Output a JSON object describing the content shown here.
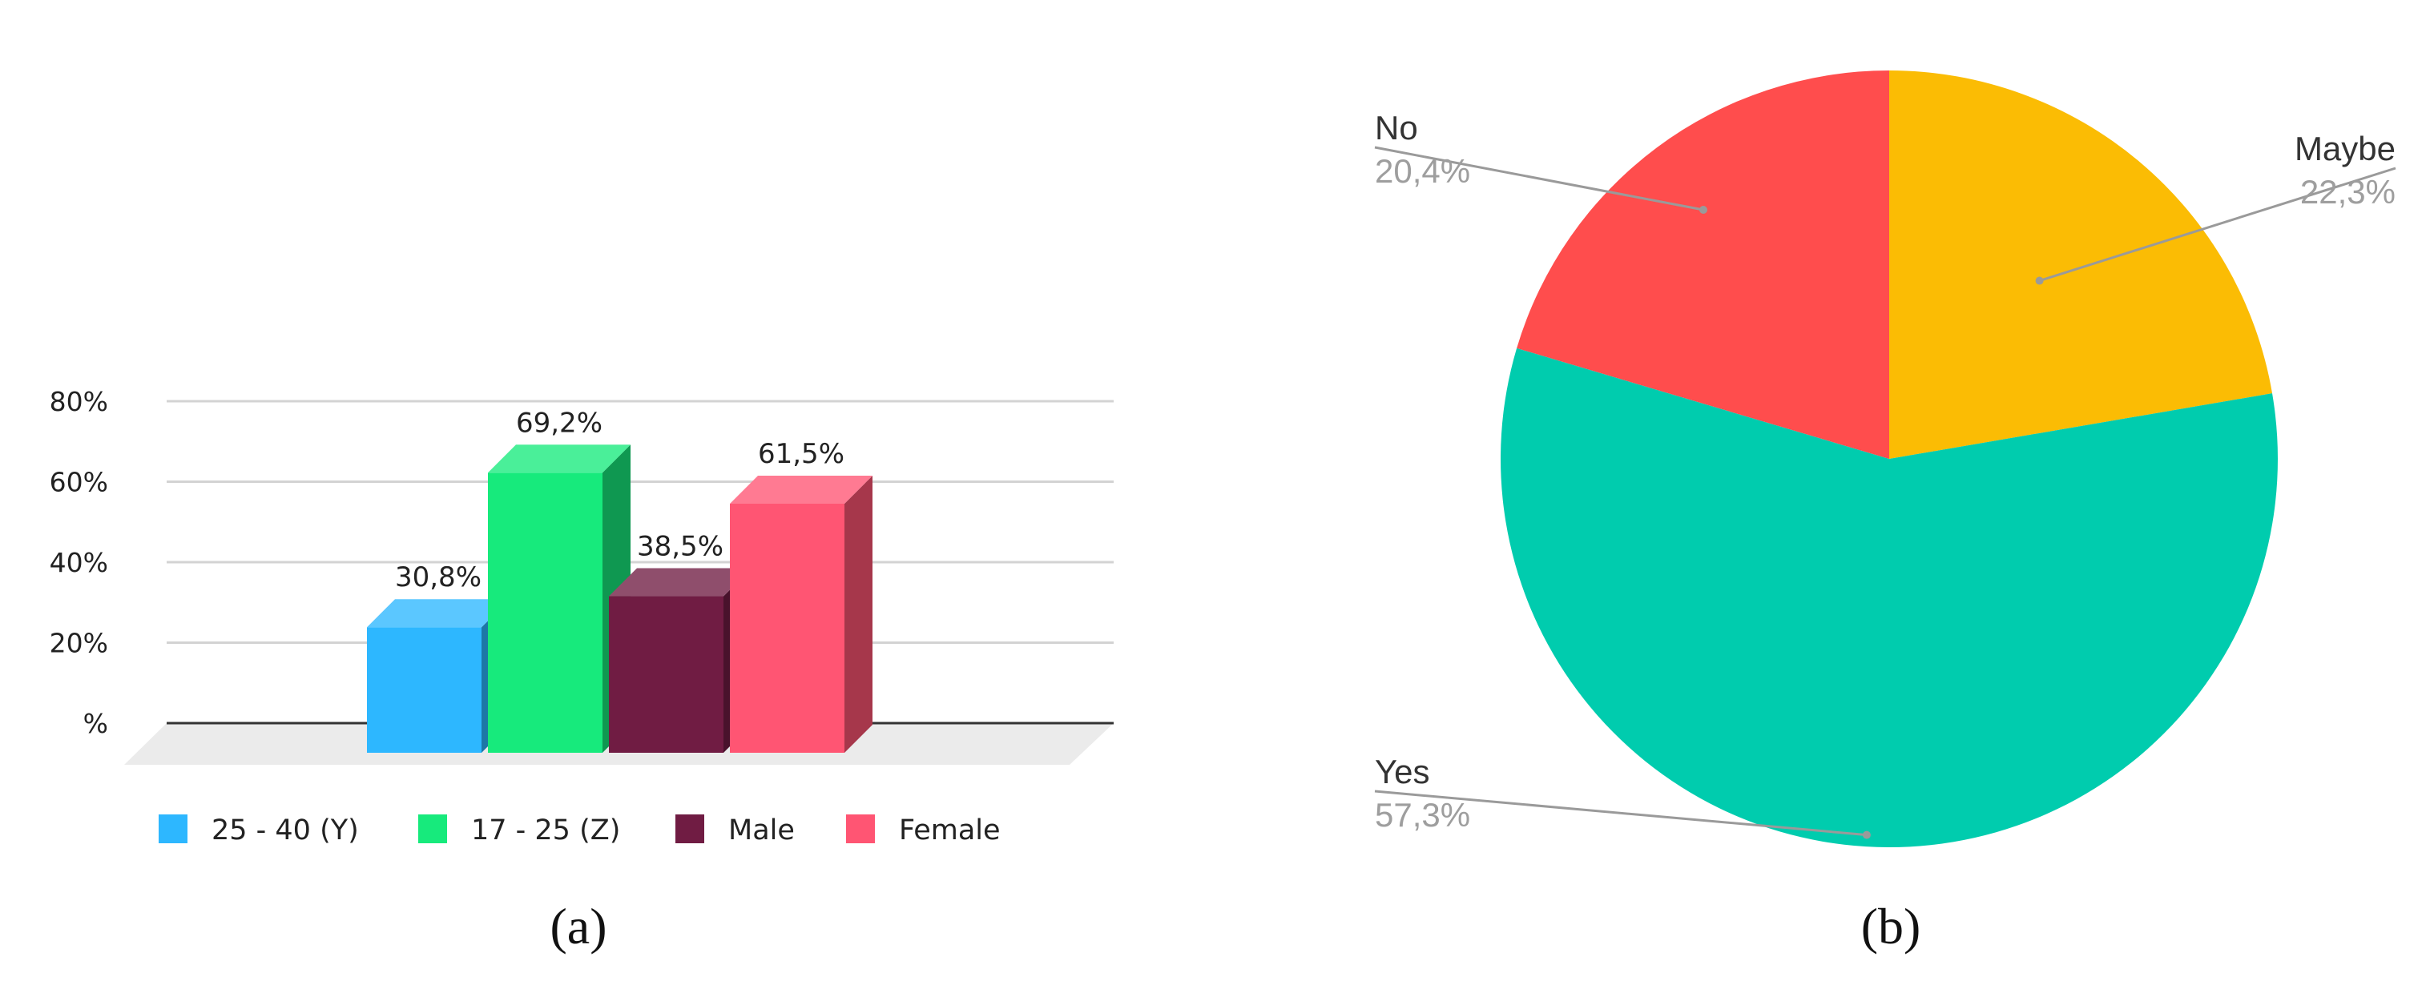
{
  "chart_data": [
    {
      "type": "bar",
      "categories": [
        "25 - 40 (Y)",
        "17 - 25 (Z)",
        "Male",
        "Female"
      ],
      "values": [
        30.8,
        69.2,
        38.5,
        61.5
      ],
      "data_labels": [
        "30,8%",
        "69,2%",
        "38,5%",
        "61,5%"
      ],
      "colors": [
        "#2DB7FF",
        "#17EA7C",
        "#701C43",
        "#FF5573"
      ],
      "y_ticks": [
        {
          "value": 0,
          "label": "%"
        },
        {
          "value": 20,
          "label": "20%"
        },
        {
          "value": 40,
          "label": "40%"
        },
        {
          "value": 60,
          "label": "60%"
        },
        {
          "value": 80,
          "label": "80%"
        }
      ],
      "ylim": [
        0,
        80
      ],
      "grid": true,
      "legend_position": "bottom",
      "caption": "(a)"
    },
    {
      "type": "pie",
      "slices": [
        {
          "label": "Maybe",
          "value": 22.3,
          "value_label": "22,3%",
          "color": "#FBBC04"
        },
        {
          "label": "Yes",
          "value": 57.3,
          "value_label": "57,3%",
          "color": "#00CCAE"
        },
        {
          "label": "No",
          "value": 20.4,
          "value_label": "20,4%",
          "color": "#FF4D4D"
        }
      ],
      "start_angle_deg": 0,
      "caption": "(b)"
    }
  ]
}
